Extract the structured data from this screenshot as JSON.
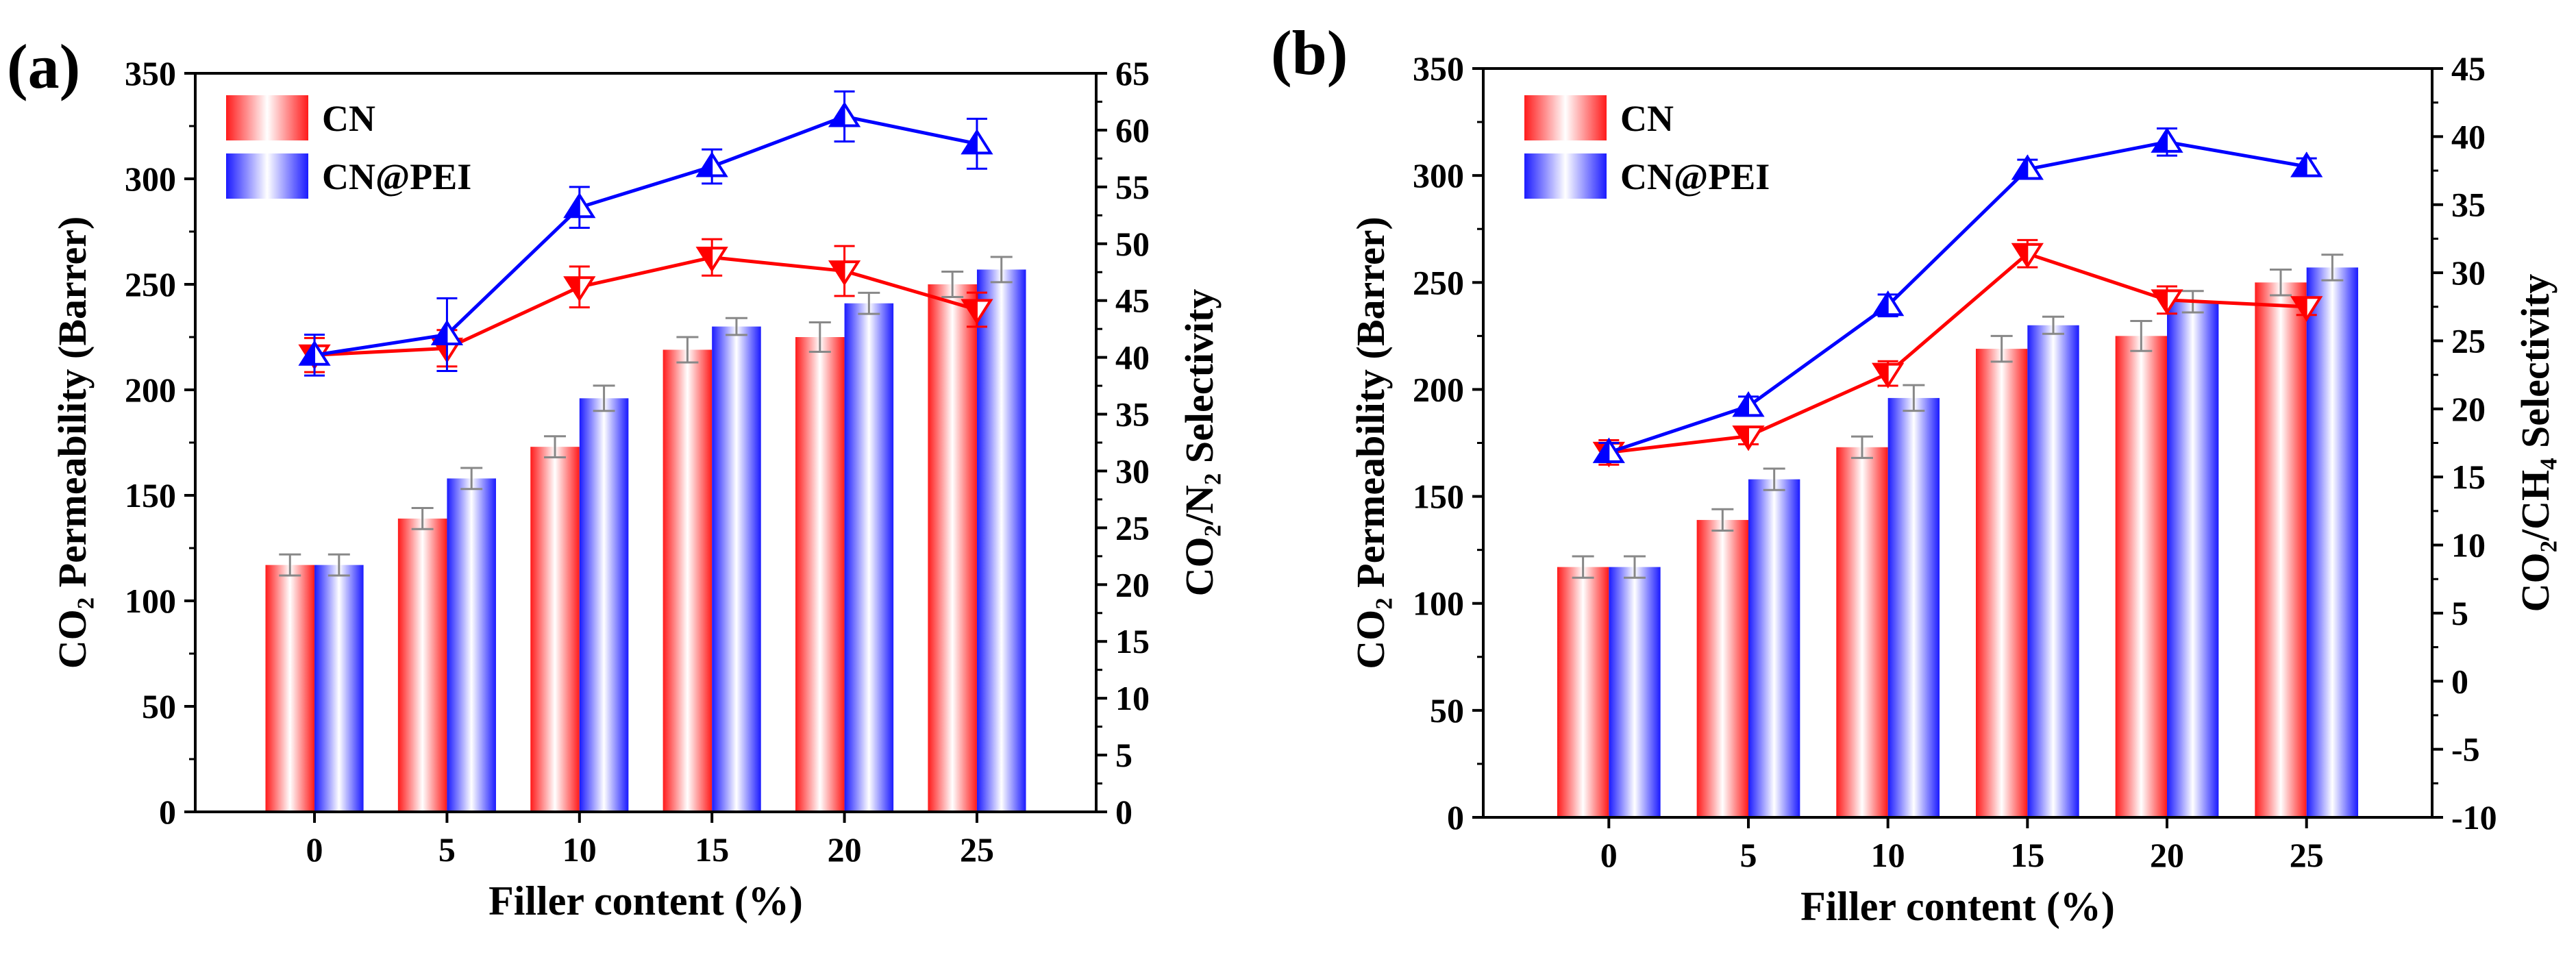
{
  "chart_data": [
    {
      "panel_label": "(a)",
      "type": "bar",
      "xlabel": "Filler content (%)",
      "ylabel": "CO₂ Permeability (Barrer)",
      "y2label": "CO₂/N₂ Selectivity",
      "categories": [
        "0",
        "5",
        "10",
        "15",
        "20",
        "25"
      ],
      "ylim": [
        0,
        350
      ],
      "y2lim": [
        0,
        65
      ],
      "y_ticks": [
        "0",
        "50",
        "100",
        "150",
        "200",
        "250",
        "300",
        "350"
      ],
      "y2_ticks": [
        "0",
        "5",
        "10",
        "15",
        "20",
        "25",
        "30",
        "35",
        "40",
        "45",
        "50",
        "55",
        "60",
        "65"
      ],
      "legend": {
        "position": "top-left",
        "entries": [
          "CN",
          "CN@PEI"
        ]
      },
      "bar_series": [
        {
          "name": "CN",
          "values": [
            117,
            139,
            173,
            219,
            225,
            250
          ],
          "errors": [
            5,
            5,
            5,
            6,
            7,
            6
          ]
        },
        {
          "name": "CN@PEI",
          "values": [
            117,
            158,
            196,
            230,
            241,
            257
          ],
          "errors": [
            5,
            5,
            6,
            4,
            5,
            6
          ]
        }
      ],
      "line_series": [
        {
          "name": "CN",
          "values": [
            40.2,
            40.8,
            46.2,
            48.8,
            47.6,
            44.2
          ],
          "errors": [
            1.5,
            1.6,
            1.8,
            1.6,
            2.2,
            1.5
          ],
          "color": "#ff0000",
          "marker": "down-triangle"
        },
        {
          "name": "CN@PEI",
          "values": [
            40.2,
            42.0,
            53.2,
            56.8,
            61.2,
            58.8
          ],
          "errors": [
            1.8,
            3.2,
            1.8,
            1.5,
            2.2,
            2.2
          ],
          "color": "#0000ff",
          "marker": "up-triangle"
        }
      ]
    },
    {
      "panel_label": "(b)",
      "type": "bar",
      "xlabel": "Filler content (%)",
      "ylabel": "CO₂ Permeability (Barrer)",
      "y2label": "CO₂/CH₄ Selectivity",
      "categories": [
        "0",
        "5",
        "10",
        "15",
        "20",
        "25"
      ],
      "ylim": [
        0,
        350
      ],
      "y2lim": [
        -10,
        45
      ],
      "y_ticks": [
        "0",
        "50",
        "100",
        "150",
        "200",
        "250",
        "300",
        "350"
      ],
      "y2_ticks": [
        "-10",
        "-5",
        "0",
        "5",
        "10",
        "15",
        "20",
        "25",
        "30",
        "35",
        "40",
        "45"
      ],
      "legend": {
        "position": "top-left",
        "entries": [
          "CN",
          "CN@PEI"
        ]
      },
      "bar_series": [
        {
          "name": "CN",
          "values": [
            117,
            139,
            173,
            219,
            225,
            250
          ],
          "errors": [
            5,
            5,
            5,
            6,
            7,
            6
          ]
        },
        {
          "name": "CN@PEI",
          "values": [
            117,
            158,
            196,
            230,
            241,
            257
          ],
          "errors": [
            5,
            5,
            6,
            4,
            5,
            6
          ]
        }
      ],
      "line_series": [
        {
          "name": "CN",
          "values": [
            16.8,
            18.0,
            22.6,
            31.4,
            28.0,
            27.5
          ],
          "errors": [
            0.9,
            0.6,
            0.9,
            1.0,
            1.0,
            0.6
          ],
          "color": "#ff0000",
          "marker": "down-triangle"
        },
        {
          "name": "CN@PEI",
          "values": [
            16.8,
            20.2,
            27.6,
            37.6,
            39.6,
            37.8
          ],
          "errors": [
            0.7,
            0.7,
            0.8,
            0.7,
            1.0,
            0.6
          ],
          "color": "#0000ff",
          "marker": "up-triangle"
        }
      ]
    }
  ]
}
